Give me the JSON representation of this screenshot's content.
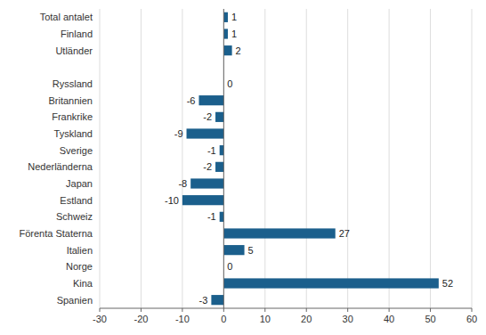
{
  "chart_data": {
    "type": "bar",
    "orientation": "horizontal",
    "categories": [
      "Total antalet",
      "Finland",
      "Utländer",
      null,
      "Ryssland",
      "Britannien",
      "Frankrike",
      "Tyskland",
      "Sverige",
      "Nederländerna",
      "Japan",
      "Estland",
      "Schweiz",
      "Förenta Staterna",
      "Italien",
      "Norge",
      "Kina",
      "Spanien"
    ],
    "values": [
      1,
      1,
      2,
      null,
      0,
      -6,
      -2,
      -9,
      -1,
      -2,
      -8,
      -10,
      -1,
      27,
      5,
      0,
      52,
      -3
    ],
    "color": "#1B5F8C",
    "xlim": [
      -30,
      60
    ],
    "xticks": [
      -30,
      -20,
      -10,
      0,
      10,
      20,
      30,
      40,
      50,
      60
    ],
    "grid": true,
    "data_labels": true
  }
}
